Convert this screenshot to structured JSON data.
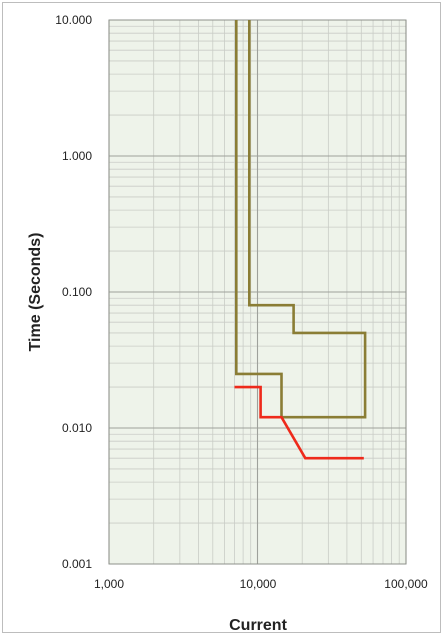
{
  "chart_data": {
    "type": "line",
    "title": "",
    "xlabel": "Current",
    "ylabel": "Time (Seconds)",
    "x_scale": "log",
    "y_scale": "log",
    "xlim": [
      1000,
      100000
    ],
    "ylim": [
      0.001,
      10
    ],
    "x_ticks": [
      "1,000",
      "10,000",
      "100,000"
    ],
    "y_ticks": [
      "10.000",
      "1.000",
      "0.100",
      "0.010",
      "0.001"
    ],
    "grid": true,
    "legend": "none",
    "colors": {
      "plot_background": "#eef3ea",
      "grid_minor": "#c9ccc6",
      "grid_major": "#9ea19b",
      "curve_olive": "#8a7d35",
      "curve_red": "#ee2a1b"
    },
    "series": [
      {
        "color": "#8a7d35",
        "points": [
          [
            7200,
            10
          ],
          [
            7200,
            0.025
          ],
          [
            14500,
            0.025
          ],
          [
            14500,
            0.012
          ],
          [
            53000,
            0.012
          ],
          [
            53000,
            0.05
          ],
          [
            17500,
            0.05
          ],
          [
            17500,
            0.08
          ],
          [
            8800,
            0.08
          ],
          [
            8800,
            10
          ]
        ]
      },
      {
        "color": "#ee2a1b",
        "points": [
          [
            7000,
            0.02
          ],
          [
            10500,
            0.02
          ],
          [
            10500,
            0.012
          ],
          [
            14500,
            0.012
          ],
          [
            21000,
            0.006
          ],
          [
            52000,
            0.006
          ]
        ]
      }
    ]
  }
}
